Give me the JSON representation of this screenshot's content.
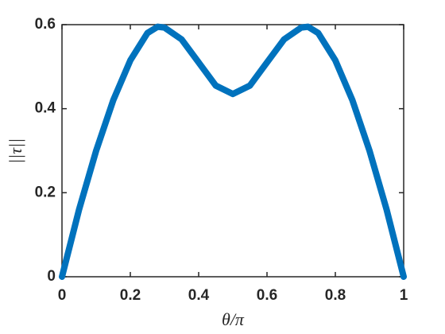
{
  "chart_data": {
    "type": "line",
    "xlabel": "θ/π",
    "ylabel": "||τ||",
    "x": [
      0,
      0.05,
      0.1,
      0.15,
      0.2,
      0.25,
      0.28,
      0.3,
      0.35,
      0.4,
      0.45,
      0.5,
      0.55,
      0.6,
      0.65,
      0.7,
      0.72,
      0.75,
      0.8,
      0.85,
      0.9,
      0.95,
      1
    ],
    "series": [
      {
        "color": "#0072bd",
        "values": [
          0,
          0.16,
          0.3,
          0.42,
          0.515,
          0.58,
          0.595,
          0.593,
          0.565,
          0.51,
          0.455,
          0.435,
          0.455,
          0.51,
          0.565,
          0.593,
          0.595,
          0.58,
          0.515,
          0.42,
          0.3,
          0.16,
          0
        ]
      }
    ],
    "xlim": [
      0,
      1
    ],
    "xticks": [
      0,
      0.2,
      0.4,
      0.6,
      0.8,
      1
    ],
    "ylim": [
      0,
      0.6
    ],
    "yticks": [
      0,
      0.2,
      0.4,
      0.6
    ],
    "grid": false
  }
}
